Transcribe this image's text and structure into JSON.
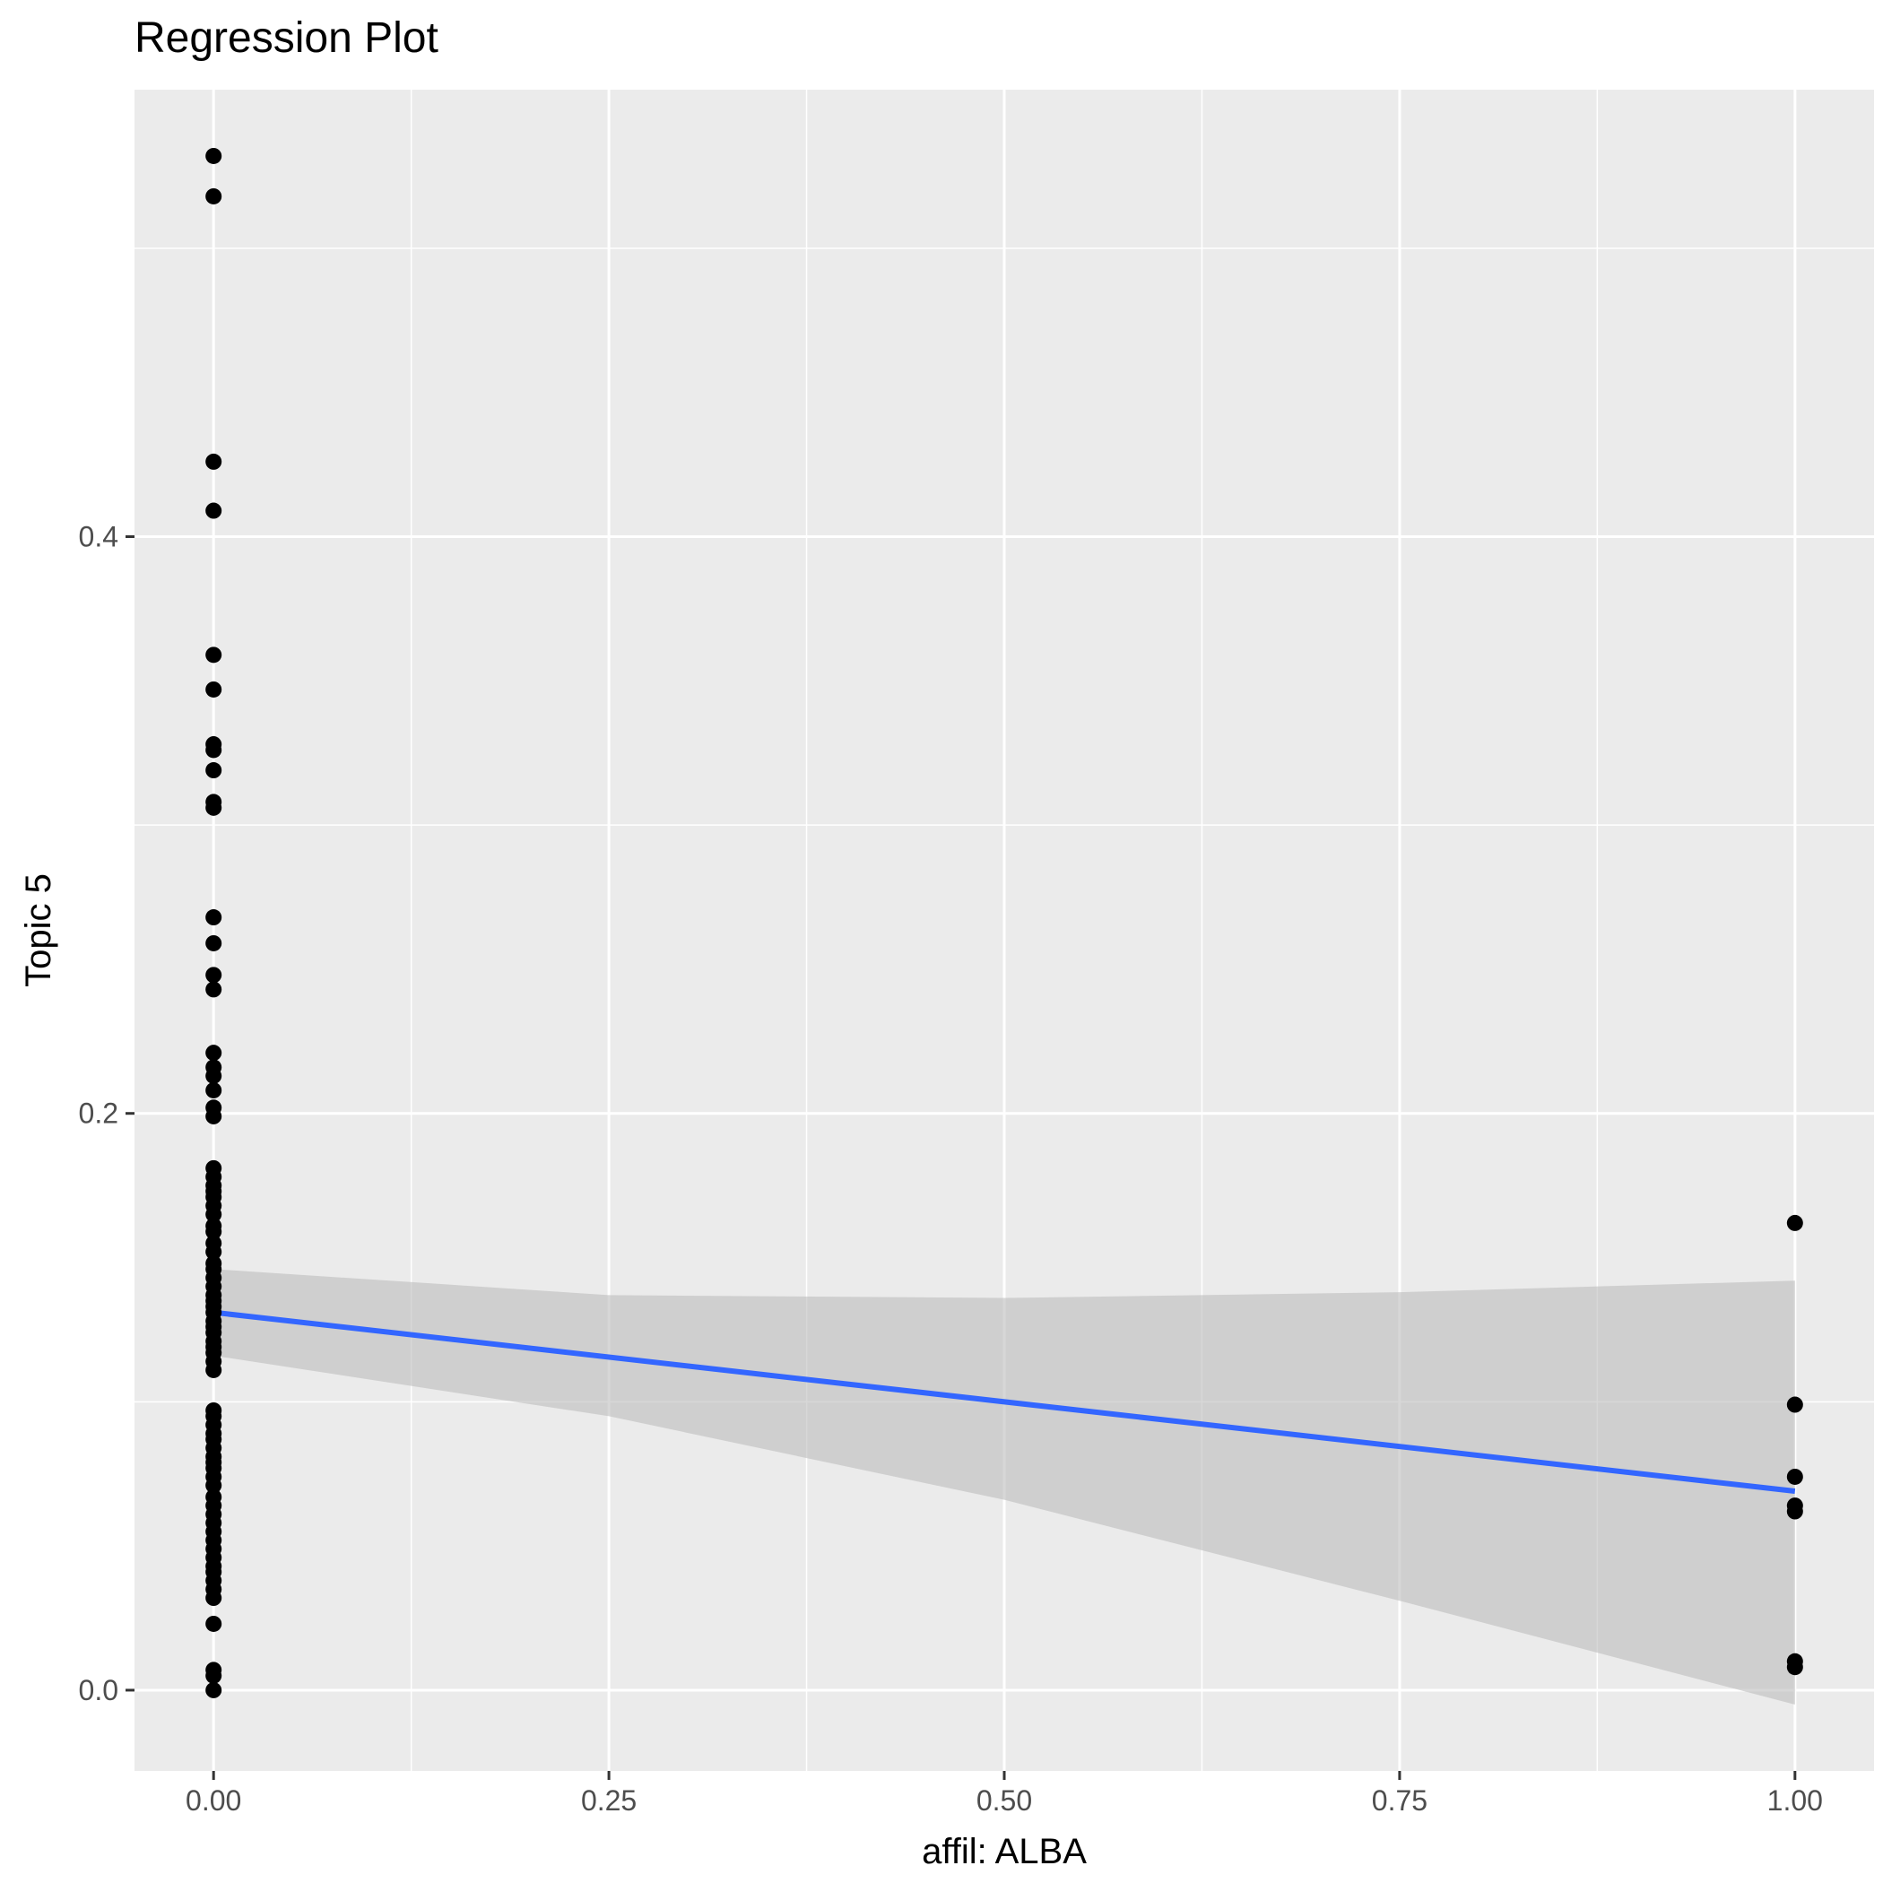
{
  "chart_data": {
    "type": "scatter",
    "title": "Regression Plot",
    "xlabel": "affil: ALBA",
    "ylabel": "Topic 5",
    "xlim": [
      -0.05,
      1.05
    ],
    "ylim": [
      -0.028,
      0.555
    ],
    "x_ticks": [
      0.0,
      0.25,
      0.5,
      0.75,
      1.0
    ],
    "x_tick_labels": [
      "0.00",
      "0.25",
      "0.50",
      "0.75",
      "1.00"
    ],
    "y_ticks": [
      0.0,
      0.2,
      0.4
    ],
    "y_tick_labels": [
      "0.0",
      "0.2",
      "0.4"
    ],
    "grid": true,
    "legend": "none",
    "colors": {
      "panel": "#ebebeb",
      "grid": "#ffffff",
      "points": "#000000",
      "fit_line": "#3366ff",
      "ribbon": "#bdbdbd"
    },
    "series": [
      {
        "x": [
          0,
          0,
          0,
          0,
          0,
          0,
          0,
          0,
          0,
          0,
          0,
          0,
          0,
          0,
          0,
          0,
          0,
          0,
          0,
          0,
          0,
          0,
          0,
          0,
          0,
          0,
          0,
          0,
          0,
          0,
          0,
          0,
          0,
          0,
          0,
          0,
          0,
          0,
          0,
          0,
          0,
          0,
          0,
          0,
          0,
          0,
          0,
          0,
          0,
          0,
          0,
          0,
          0,
          0,
          0,
          0,
          0,
          0,
          0,
          0,
          0,
          0,
          0,
          0,
          0,
          0,
          0,
          0,
          0,
          0,
          0,
          0,
          0,
          0,
          0,
          0,
          1,
          1,
          1,
          1,
          1,
          1,
          1
        ],
        "y": [
          0.532,
          0.518,
          0.426,
          0.409,
          0.359,
          0.347,
          0.328,
          0.326,
          0.319,
          0.308,
          0.306,
          0.268,
          0.259,
          0.248,
          0.243,
          0.221,
          0.216,
          0.213,
          0.208,
          0.202,
          0.199,
          0.181,
          0.178,
          0.175,
          0.173,
          0.171,
          0.168,
          0.165,
          0.161,
          0.159,
          0.155,
          0.152,
          0.148,
          0.146,
          0.143,
          0.14,
          0.137,
          0.135,
          0.133,
          0.131,
          0.128,
          0.126,
          0.124,
          0.121,
          0.119,
          0.117,
          0.114,
          0.111,
          0.097,
          0.095,
          0.092,
          0.089,
          0.087,
          0.084,
          0.081,
          0.079,
          0.077,
          0.074,
          0.071,
          0.067,
          0.064,
          0.061,
          0.058,
          0.055,
          0.052,
          0.049,
          0.046,
          0.043,
          0.041,
          0.038,
          0.035,
          0.032,
          0.023,
          0.007,
          0.005,
          0.0,
          0.162,
          0.099,
          0.074,
          0.064,
          0.062,
          0.01,
          0.008
        ]
      }
    ],
    "fit_line": {
      "x": [
        0,
        1
      ],
      "y": [
        0.131,
        0.069
      ]
    },
    "confidence_band": {
      "x": [
        0,
        0.25,
        0.5,
        0.75,
        1
      ],
      "upper": [
        0.146,
        0.137,
        0.136,
        0.138,
        0.142
      ],
      "lower": [
        0.116,
        0.095,
        0.066,
        0.031,
        -0.005
      ]
    }
  }
}
